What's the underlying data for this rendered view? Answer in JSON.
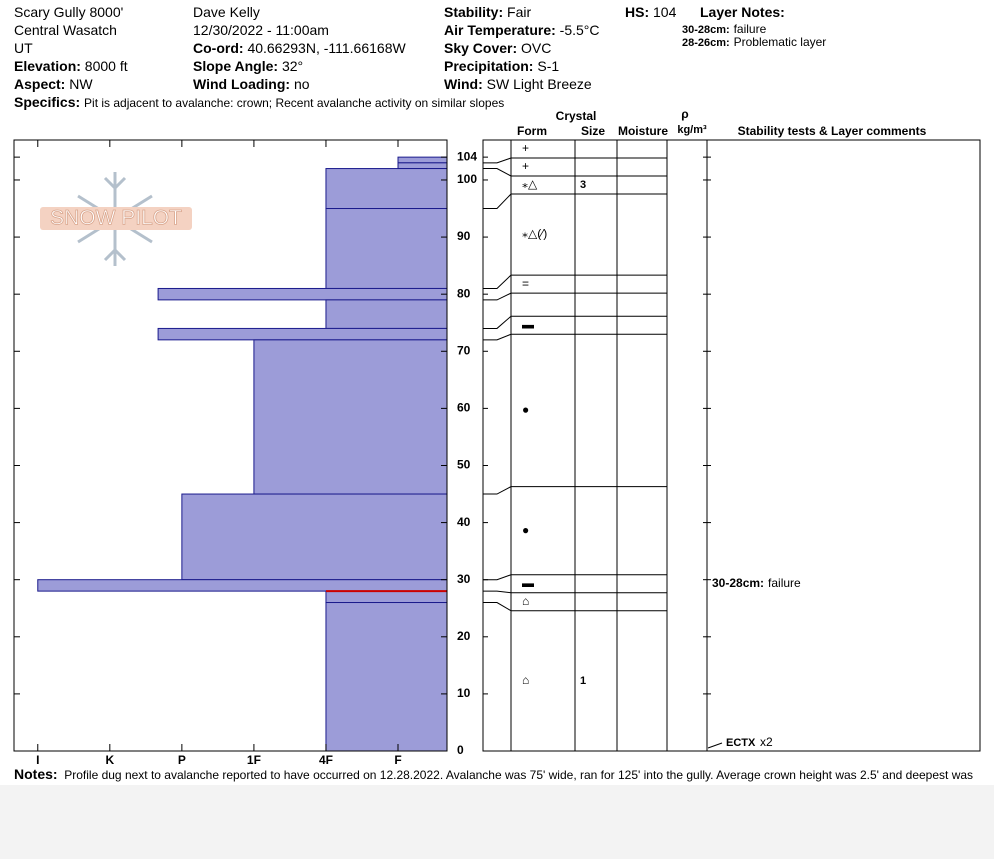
{
  "header": {
    "columns": [
      [
        {
          "value": "Scary Gully 8000'"
        },
        {
          "value": "Central Wasatch"
        },
        {
          "value": "UT"
        },
        {
          "label": "Elevation:",
          "value": "8000 ft"
        },
        {
          "label": "Aspect:",
          "value": "NW"
        }
      ],
      [
        {
          "value": "Dave Kelly"
        },
        {
          "value": "12/30/2022 - 11:00am"
        },
        {
          "label": "Co-ord:",
          "value": "40.66293N, -111.66168W"
        },
        {
          "label": "Slope Angle:",
          "value": "32°"
        },
        {
          "label": "Wind Loading:",
          "value": "no"
        }
      ],
      [
        {
          "label": "Stability:",
          "value": "Fair"
        },
        {
          "label": "Air Temperature:",
          "value": "-5.5°C"
        },
        {
          "label": "Sky Cover:",
          "value": "OVC"
        },
        {
          "label": "Precipitation:",
          "value": "S-1"
        },
        {
          "label": "Wind:",
          "value": "SW Light Breeze"
        }
      ]
    ],
    "hs": {
      "label": "HS:",
      "value": "104"
    },
    "specifics": {
      "label": "Specifics:",
      "value": "Pit is adjacent to avalanche: crown; Recent avalanche activity on similar slopes"
    }
  },
  "layer_notes": {
    "title": "Layer Notes:",
    "items": [
      {
        "range": "30-28cm:",
        "text": "failure"
      },
      {
        "range": "28-26cm:",
        "text": "Problematic layer"
      }
    ]
  },
  "logo": "SNOW PILOT",
  "chart_data": {
    "type": "snow-profile",
    "ylim": [
      0,
      107
    ],
    "yticks": [
      0,
      10,
      20,
      30,
      40,
      50,
      60,
      70,
      80,
      90,
      100,
      104
    ],
    "xlim": [
      0.67,
      6.68
    ],
    "xticks": [
      {
        "value": 1,
        "label": "I"
      },
      {
        "value": 2,
        "label": "K"
      },
      {
        "value": 3,
        "label": "P"
      },
      {
        "value": 4,
        "label": "1F"
      },
      {
        "value": 5,
        "label": "4F"
      },
      {
        "value": 6,
        "label": "F"
      }
    ],
    "color": "#9c9cd8",
    "edge_color": "#1a1a8c",
    "failure_color": "#cc0000",
    "failure_depth": 28,
    "layers": {
      "top": [
        104,
        103,
        102,
        95,
        81,
        79,
        74,
        72,
        45,
        30,
        28,
        26
      ],
      "bottom": [
        103,
        102,
        95,
        81,
        79,
        74,
        72,
        45,
        30,
        28,
        26,
        0
      ],
      "hardness": [
        6,
        6,
        5,
        5,
        2.67,
        5,
        2.67,
        4,
        3,
        1,
        5,
        5
      ],
      "form": [
        "+",
        "+",
        "⁎△",
        "⁎△(⁄)",
        "=",
        null,
        "▬",
        "●",
        "●",
        "▬",
        "⌂",
        "⌂"
      ],
      "size": [
        null,
        null,
        "3",
        null,
        null,
        null,
        null,
        null,
        null,
        null,
        null,
        "1"
      ],
      "comment": [
        null,
        null,
        null,
        null,
        null,
        null,
        null,
        null,
        null,
        {
          "range": "30-28cm:",
          "text": "failure"
        },
        null,
        null
      ]
    },
    "table_headers": {
      "crystal": "Crystal",
      "form": "Form",
      "size": "Size",
      "moisture": "Moisture",
      "rho": "ρ",
      "density": "kg/m³",
      "comments": "Stability tests & Layer comments"
    },
    "tests": [
      {
        "label": "ECTX",
        "text": "x2"
      }
    ]
  },
  "notes": {
    "label": "Notes:",
    "value": "Profile dug next to avalanche reported to have occurred on 12.28.2022. Avalanche was 75' wide, ran for 125' into the gully. Average crown height was 2.5' and deepest was"
  }
}
